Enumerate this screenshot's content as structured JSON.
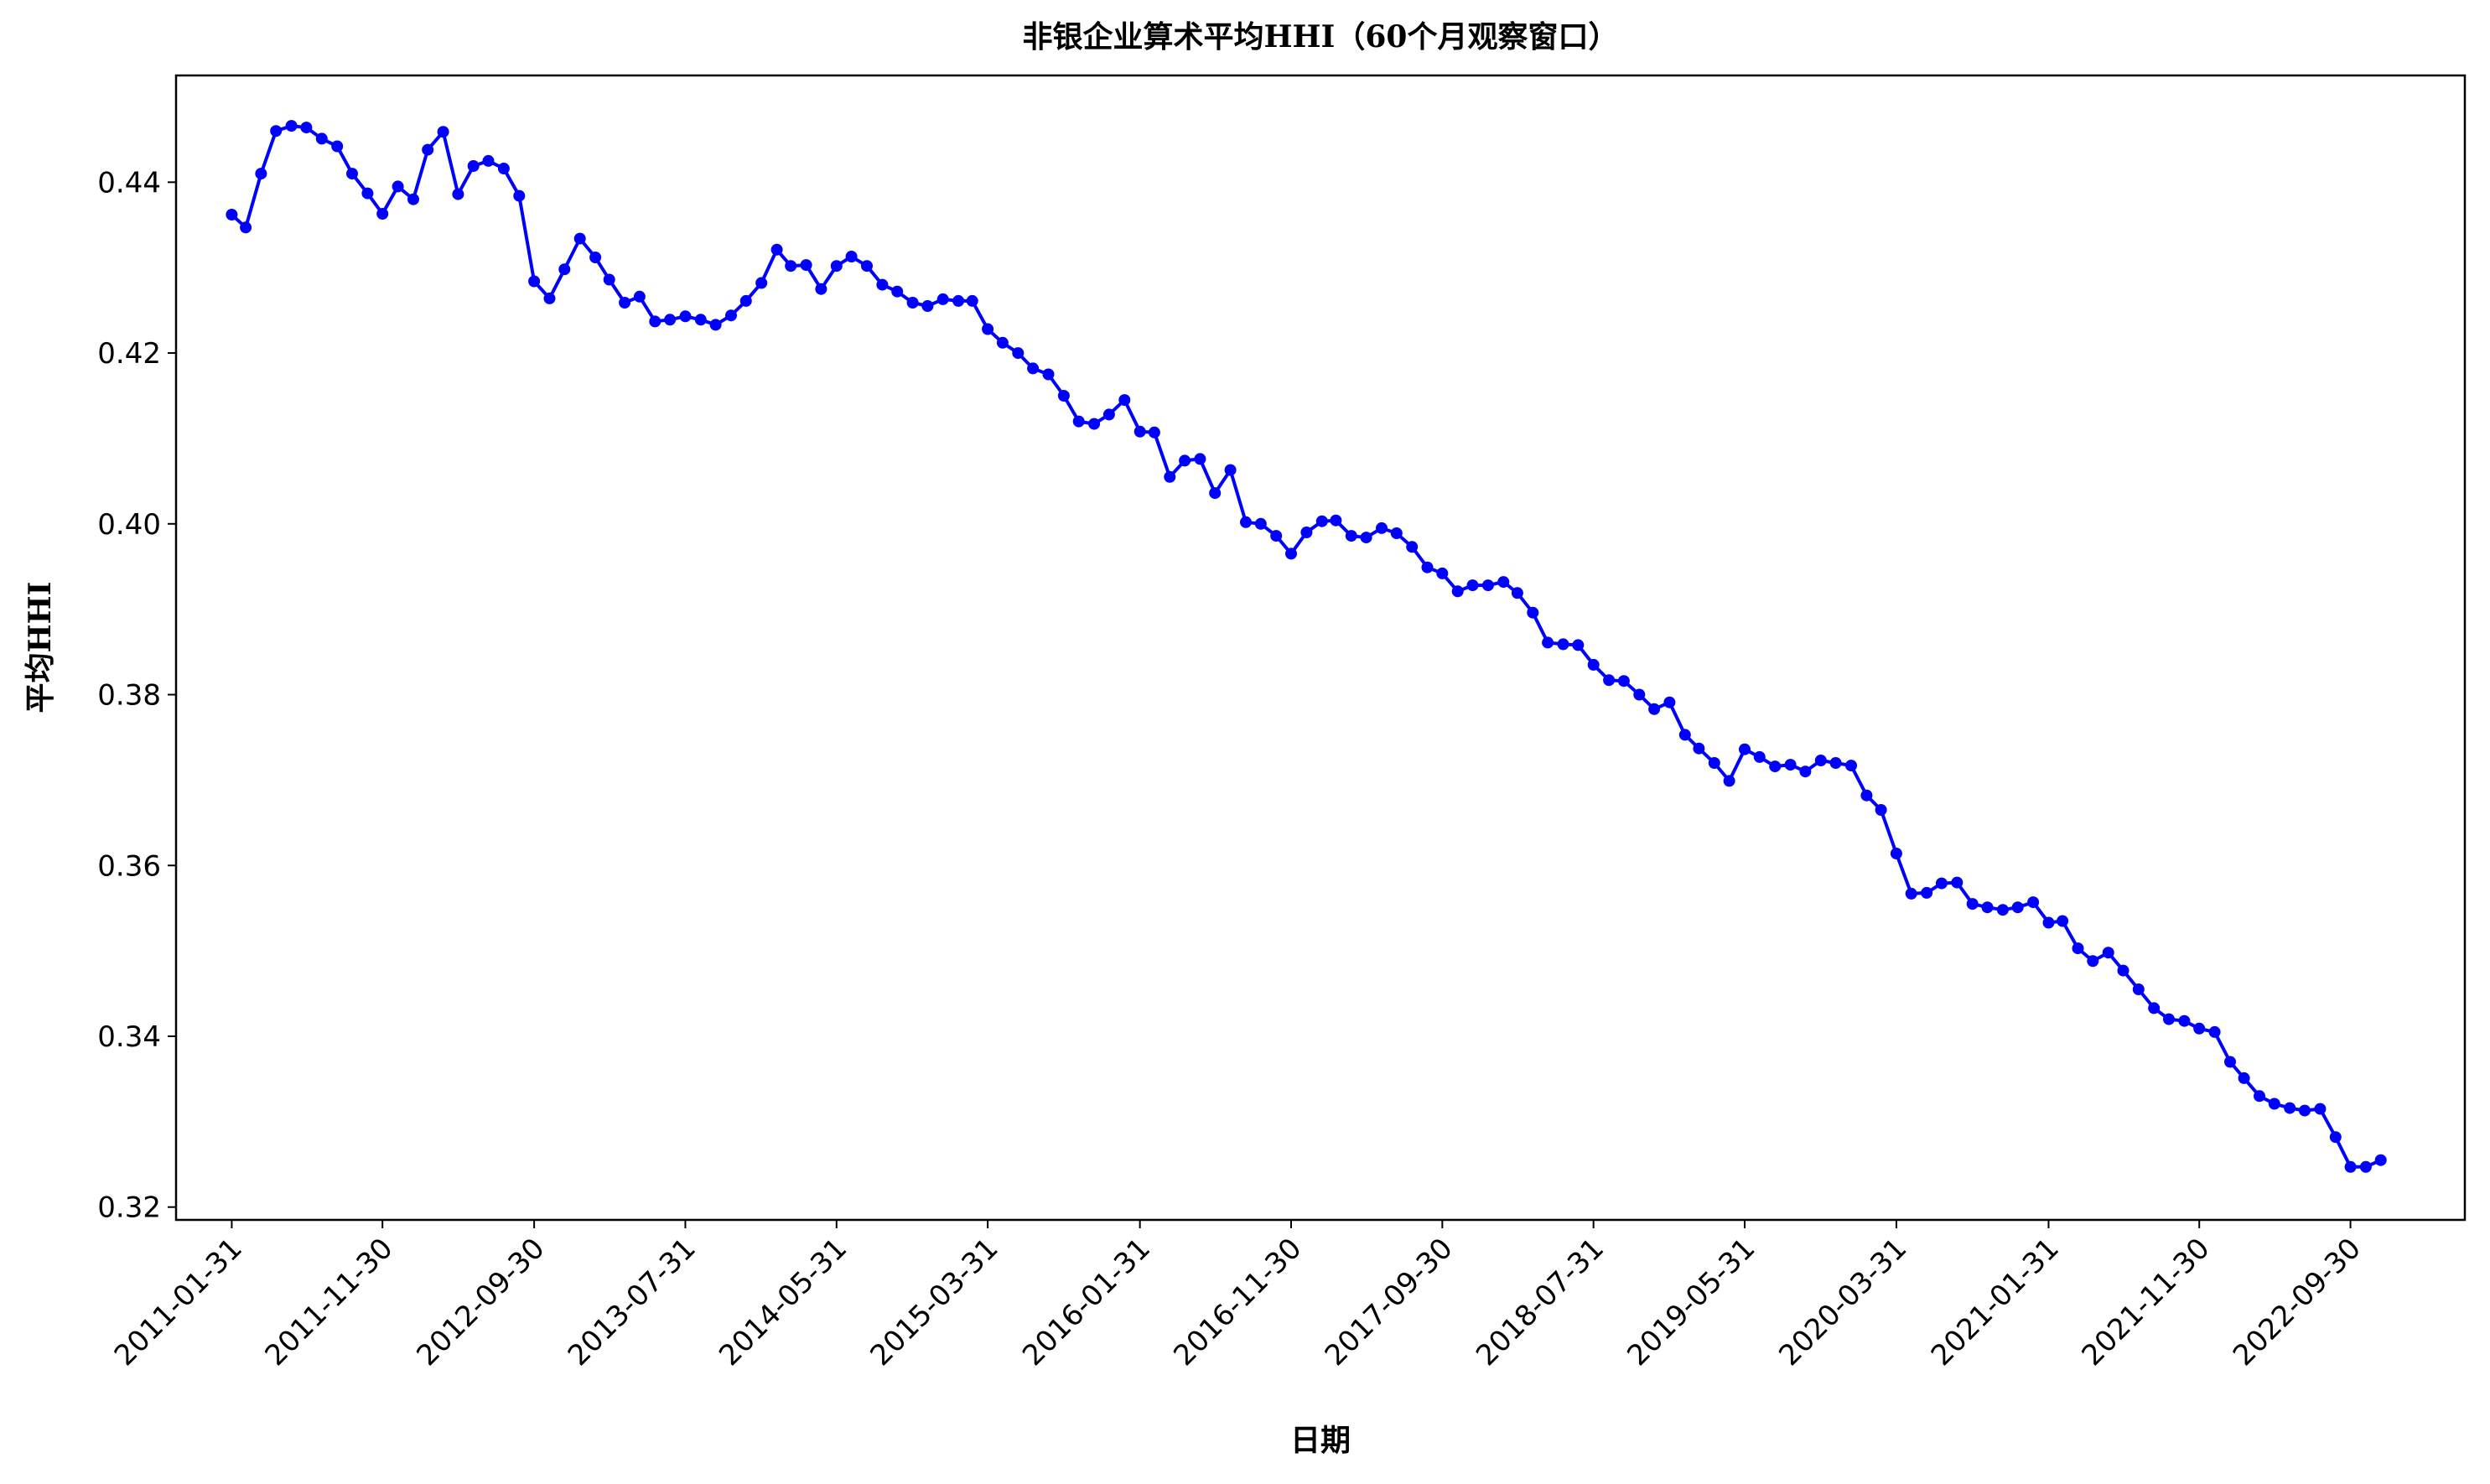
{
  "chart_data": {
    "type": "line",
    "title": "非银企业算术平均HHI（60个月观察窗口）",
    "xlabel": "日期",
    "ylabel": "平均HHI",
    "ylim": [
      0.3185,
      0.4525
    ],
    "yticks": [
      0.32,
      0.34,
      0.36,
      0.38,
      0.4,
      0.42,
      0.44
    ],
    "ytick_labels": [
      "0.32",
      "0.34",
      "0.36",
      "0.38",
      "0.40",
      "0.42",
      "0.44"
    ],
    "xlim": [
      "2010-10-11",
      "2023-05-18"
    ],
    "xticks": [
      "2011-01-31",
      "2011-11-30",
      "2012-09-30",
      "2013-07-31",
      "2014-05-31",
      "2015-03-31",
      "2016-01-31",
      "2016-11-30",
      "2017-09-30",
      "2018-07-31",
      "2019-05-31",
      "2020-03-31",
      "2021-01-31",
      "2021-11-30",
      "2022-09-30"
    ],
    "grid": false,
    "legend": "none",
    "series": [
      {
        "color": "#0000ff",
        "marker": "circle",
        "x": [
          "2011-01-31",
          "2011-02-28",
          "2011-03-31",
          "2011-04-30",
          "2011-05-31",
          "2011-06-30",
          "2011-07-31",
          "2011-08-31",
          "2011-09-30",
          "2011-10-31",
          "2011-11-30",
          "2011-12-31",
          "2012-01-31",
          "2012-02-29",
          "2012-03-31",
          "2012-04-30",
          "2012-05-31",
          "2012-06-30",
          "2012-07-31",
          "2012-08-31",
          "2012-09-30",
          "2012-10-31",
          "2012-11-30",
          "2012-12-31",
          "2013-01-31",
          "2013-02-28",
          "2013-03-31",
          "2013-04-30",
          "2013-05-31",
          "2013-06-30",
          "2013-07-31",
          "2013-08-31",
          "2013-09-30",
          "2013-10-31",
          "2013-11-30",
          "2013-12-31",
          "2014-01-31",
          "2014-02-28",
          "2014-03-31",
          "2014-04-30",
          "2014-05-31",
          "2014-06-30",
          "2014-07-31",
          "2014-08-31",
          "2014-09-30",
          "2014-10-31",
          "2014-11-30",
          "2014-12-31",
          "2015-01-31",
          "2015-02-28",
          "2015-03-31",
          "2015-04-30",
          "2015-05-31",
          "2015-06-30",
          "2015-07-31",
          "2015-08-31",
          "2015-09-30",
          "2015-10-31",
          "2015-11-30",
          "2015-12-31",
          "2016-01-31",
          "2016-02-29",
          "2016-03-31",
          "2016-04-30",
          "2016-05-31",
          "2016-06-30",
          "2016-07-31",
          "2016-08-31",
          "2016-09-30",
          "2016-10-31",
          "2016-11-30",
          "2016-12-31",
          "2017-01-31",
          "2017-02-28",
          "2017-03-31",
          "2017-04-30",
          "2017-05-31",
          "2017-06-30",
          "2017-07-31",
          "2017-08-31",
          "2017-09-30",
          "2017-10-31",
          "2017-11-30",
          "2017-12-31",
          "2018-01-31",
          "2018-02-28",
          "2018-03-31",
          "2018-04-30",
          "2018-05-31",
          "2018-06-30",
          "2018-07-31",
          "2018-08-31",
          "2018-09-30",
          "2018-10-31",
          "2018-11-30",
          "2018-12-31",
          "2019-01-31",
          "2019-02-28",
          "2019-03-31",
          "2019-04-30",
          "2019-05-31",
          "2019-06-30",
          "2019-07-31",
          "2019-08-31",
          "2019-09-30",
          "2019-10-31",
          "2019-11-30",
          "2019-12-31",
          "2020-01-31",
          "2020-02-29",
          "2020-03-31",
          "2020-04-30",
          "2020-05-31",
          "2020-06-30",
          "2020-07-31",
          "2020-08-31",
          "2020-09-30",
          "2020-10-31",
          "2020-11-30",
          "2020-12-31",
          "2021-01-31",
          "2021-02-28",
          "2021-03-31",
          "2021-04-30",
          "2021-05-31",
          "2021-06-30",
          "2021-07-31",
          "2021-08-31",
          "2021-09-30",
          "2021-10-31",
          "2021-11-30",
          "2021-12-31",
          "2022-01-31",
          "2022-02-28",
          "2022-03-31",
          "2022-04-30",
          "2022-05-31",
          "2022-06-30",
          "2022-07-31",
          "2022-08-31",
          "2022-09-30",
          "2022-10-31",
          "2022-11-30"
        ],
        "y": [
          0.4362,
          0.4347,
          0.441,
          0.446,
          0.4466,
          0.4464,
          0.4451,
          0.4442,
          0.441,
          0.4387,
          0.4363,
          0.4395,
          0.438,
          0.4438,
          0.4459,
          0.4386,
          0.4419,
          0.4425,
          0.4416,
          0.4384,
          0.4284,
          0.4264,
          0.4298,
          0.4334,
          0.4312,
          0.4286,
          0.4259,
          0.4266,
          0.4237,
          0.4239,
          0.4243,
          0.4239,
          0.4233,
          0.4244,
          0.4261,
          0.4282,
          0.4321,
          0.4302,
          0.4303,
          0.4275,
          0.4302,
          0.4313,
          0.4302,
          0.428,
          0.4272,
          0.4259,
          0.4255,
          0.4263,
          0.4261,
          0.4261,
          0.4228,
          0.4212,
          0.42,
          0.4182,
          0.4175,
          0.415,
          0.412,
          0.4117,
          0.4128,
          0.4145,
          0.4108,
          0.4107,
          0.4055,
          0.4074,
          0.4076,
          0.4036,
          0.4063,
          0.4002,
          0.4,
          0.3986,
          0.3965,
          0.399,
          0.4003,
          0.4004,
          0.3986,
          0.3984,
          0.3995,
          0.3989,
          0.3973,
          0.3949,
          0.3942,
          0.3921,
          0.3928,
          0.3928,
          0.3932,
          0.3919,
          0.3896,
          0.3861,
          0.3859,
          0.3858,
          0.3835,
          0.3817,
          0.3816,
          0.38,
          0.3783,
          0.3791,
          0.3753,
          0.3737,
          0.372,
          0.3699,
          0.3736,
          0.3727,
          0.3716,
          0.3718,
          0.371,
          0.3723,
          0.372,
          0.3717,
          0.3682,
          0.3665,
          0.3614,
          0.3567,
          0.3568,
          0.3579,
          0.358,
          0.3555,
          0.3551,
          0.3548,
          0.3551,
          0.3557,
          0.3533,
          0.3535,
          0.3503,
          0.3488,
          0.3498,
          0.3477,
          0.3455,
          0.3433,
          0.342,
          0.3418,
          0.3409,
          0.3405,
          0.337,
          0.3351,
          0.333,
          0.3321,
          0.3316,
          0.3313,
          0.3315,
          0.3282,
          0.3247,
          0.3247,
          0.3255
        ]
      }
    ]
  }
}
